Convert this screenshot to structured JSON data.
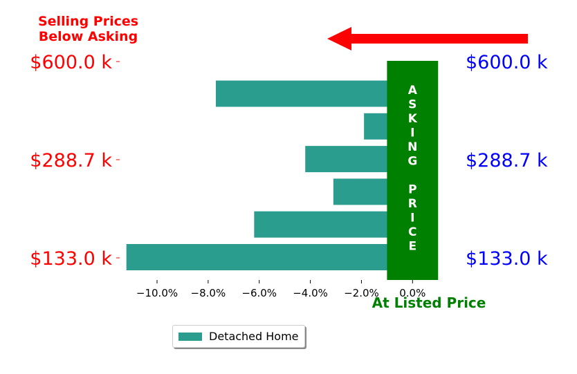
{
  "annotations": {
    "below_asking": "Selling Prices\nBelow Asking",
    "at_listed": "At Listed Price",
    "asking_price_vertical": "ASKING PRICE"
  },
  "colors": {
    "bar": "#2a9d8f",
    "asking_band": "#008000",
    "left_labels": "#ff0000",
    "right_labels": "#0000ff",
    "arrow": "#ff0000"
  },
  "legend": {
    "label": "Detached Home"
  },
  "chart_data": {
    "type": "bar",
    "orientation": "horizontal",
    "series": [
      {
        "name": "Detached Home",
        "values": [
          -11.2,
          -6.2,
          -3.1,
          -4.2,
          -1.9,
          -7.7
        ]
      }
    ],
    "xlim": [
      -11.3,
      1.4
    ],
    "x_ticks": [
      -10,
      -8,
      -6,
      -4,
      -2,
      0
    ],
    "x_tick_labels": [
      "−10.0%",
      "−8.0%",
      "−6.0%",
      "−4.0%",
      "−2.0%",
      "0.0%"
    ],
    "y_tick_labels_left": [
      "$133.0 k",
      "$288.7 k",
      "$600.0 k"
    ],
    "y_tick_labels_right": [
      "$133.0 k",
      "$288.7 k",
      "$600.0 k"
    ],
    "asking_band_range": [
      -1.0,
      1.0
    ],
    "grid": false,
    "legend_position": "bottom-center"
  }
}
